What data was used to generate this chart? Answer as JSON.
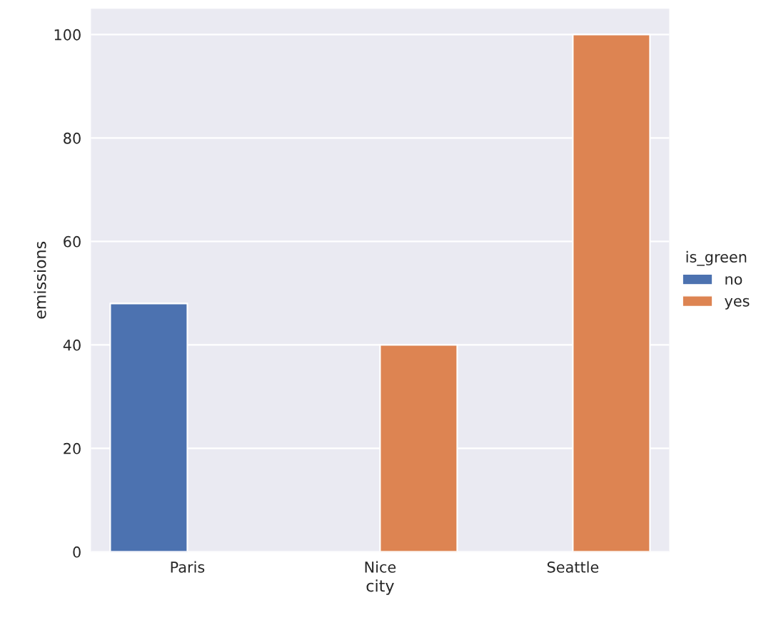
{
  "chart_data": {
    "type": "bar",
    "xlabel": "city",
    "ylabel": "emissions",
    "legend_title": "is_green",
    "categories": [
      "Paris",
      "Nice",
      "Seattle"
    ],
    "series": [
      {
        "name": "no",
        "color": "#4c72b0",
        "values": [
          48,
          null,
          null
        ]
      },
      {
        "name": "yes",
        "color": "#dd8452",
        "values": [
          null,
          40,
          100
        ]
      }
    ],
    "ylim": [
      0,
      105
    ],
    "yticks": [
      0,
      20,
      40,
      60,
      80,
      100
    ],
    "grid": "y",
    "legend": "right"
  }
}
